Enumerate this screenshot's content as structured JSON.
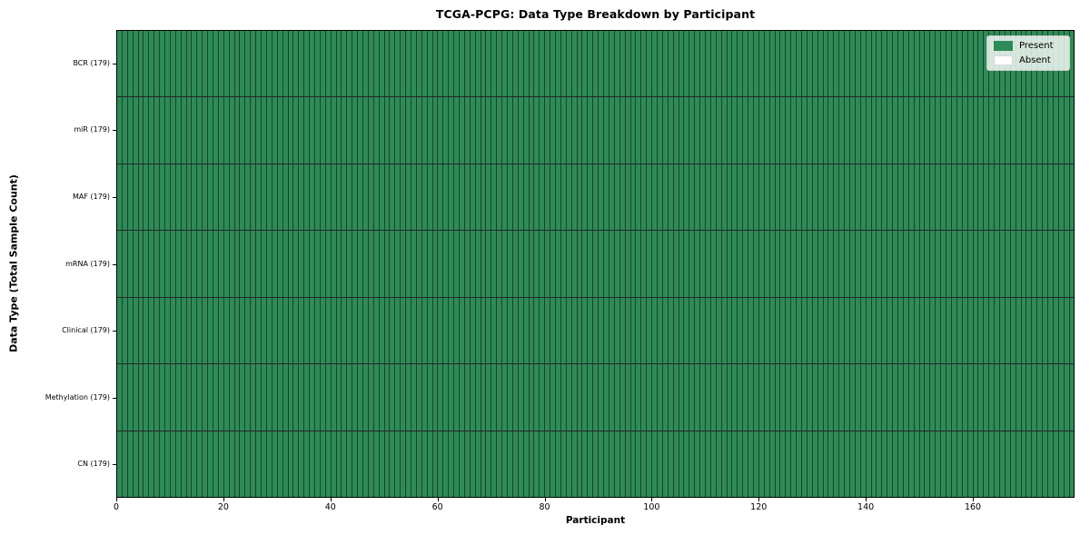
{
  "chart_data": {
    "type": "heatmap",
    "title": "TCGA-PCPG: Data Type Breakdown by Participant",
    "xlabel": "Participant",
    "ylabel": "Data Type (Total Sample Count)",
    "xlim": [
      0,
      179
    ],
    "x_ticks": [
      0,
      20,
      40,
      60,
      80,
      100,
      120,
      140,
      160
    ],
    "participant_count": 179,
    "categories": [
      "BCR (179)",
      "miR (179)",
      "MAF (179)",
      "mRNA (179)",
      "Clinical (179)",
      "Methylation (179)",
      "CN (179)"
    ],
    "rows": [
      {
        "label": "BCR (179)",
        "data_type": "BCR",
        "total_samples": 179,
        "present": 179,
        "absent": 0
      },
      {
        "label": "miR (179)",
        "data_type": "miR",
        "total_samples": 179,
        "present": 179,
        "absent": 0
      },
      {
        "label": "MAF (179)",
        "data_type": "MAF",
        "total_samples": 179,
        "present": 179,
        "absent": 0
      },
      {
        "label": "mRNA (179)",
        "data_type": "mRNA",
        "total_samples": 179,
        "present": 179,
        "absent": 0
      },
      {
        "label": "Clinical (179)",
        "data_type": "Clinical",
        "total_samples": 179,
        "present": 179,
        "absent": 0
      },
      {
        "label": "Methylation (179)",
        "data_type": "Methylation",
        "total_samples": 179,
        "present": 179,
        "absent": 0
      },
      {
        "label": "CN (179)",
        "data_type": "CN",
        "total_samples": 179,
        "present": 179,
        "absent": 0
      }
    ],
    "legend": {
      "position": "upper right",
      "items": [
        {
          "label": "Present",
          "color": "#2e8b57"
        },
        {
          "label": "Absent",
          "color": "#ffffff"
        }
      ]
    },
    "grid": false,
    "colors": {
      "present": "#2e8b57",
      "absent": "#ffffff",
      "cell_edge": "rgba(0,0,0,0.5)",
      "row_edge": "rgba(0,0,0,0.85)",
      "frame": "#000000",
      "legend_edge": "#cccccc"
    }
  }
}
